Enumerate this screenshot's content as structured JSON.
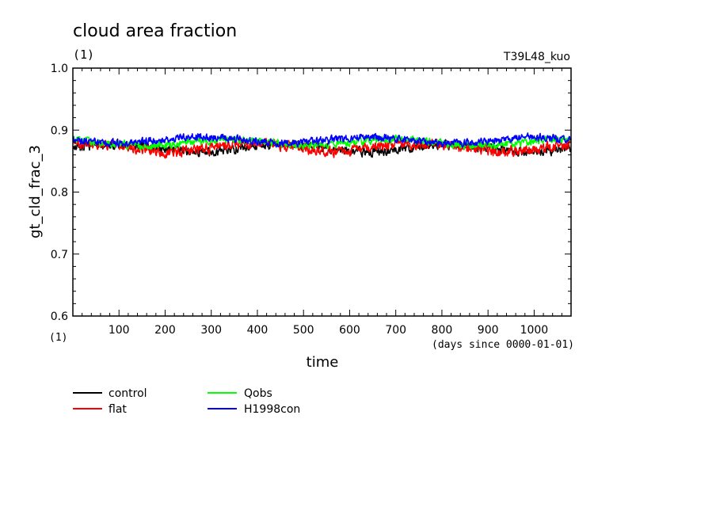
{
  "header": {
    "title": "cloud area fraction",
    "unit": "(1)",
    "run": "T39L48_kuo"
  },
  "chart_data": {
    "type": "line",
    "title": "cloud area fraction",
    "xlabel": "time",
    "xunit": "(days since 0000-01-01)",
    "ylabel": "gt_cld_frac_3",
    "yunit": "(1)",
    "xlim": [
      0,
      1080
    ],
    "ylim": [
      0.6,
      1.0
    ],
    "xticks": [
      100,
      200,
      300,
      400,
      500,
      600,
      700,
      800,
      900,
      1000
    ],
    "yticks": [
      "0.6",
      "0.7",
      "0.8",
      "0.9",
      "1.0"
    ],
    "x_sampling": "daily, day 1 to day 1080",
    "legend_position": "bottom-left",
    "series": [
      {
        "name": "control",
        "color": "#000000",
        "mean": 0.871,
        "amplitude": 0.006,
        "noise": 0.006
      },
      {
        "name": "flat",
        "color": "#ff0000",
        "mean": 0.872,
        "amplitude": 0.006,
        "noise": 0.007
      },
      {
        "name": "Qobs",
        "color": "#00ff00",
        "mean": 0.88,
        "amplitude": 0.005,
        "noise": 0.005
      },
      {
        "name": "H1998con",
        "color": "#0000ff",
        "mean": 0.884,
        "amplitude": 0.005,
        "noise": 0.005
      }
    ]
  },
  "legend": {
    "items": [
      {
        "label": "control",
        "color": "#000000"
      },
      {
        "label": "flat",
        "color": "#ff0000"
      },
      {
        "label": "Qobs",
        "color": "#00ff00"
      },
      {
        "label": "H1998con",
        "color": "#0000ff"
      }
    ]
  }
}
